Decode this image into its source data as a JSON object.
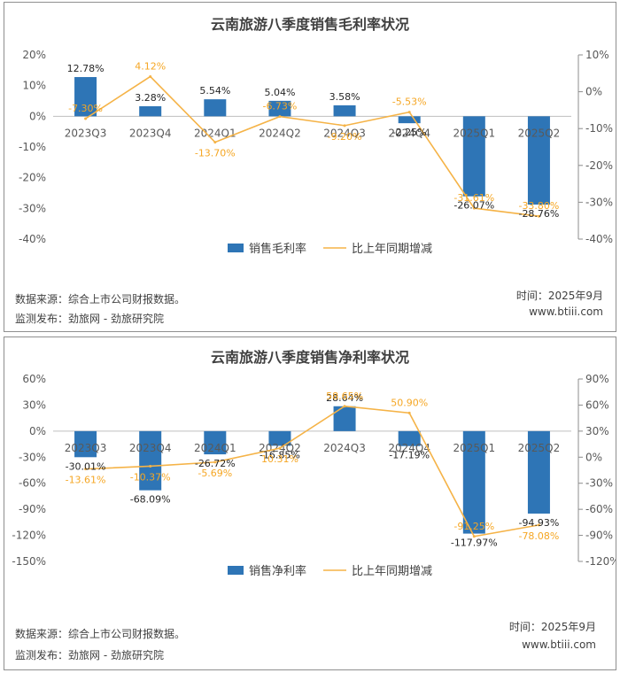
{
  "bar_color": "#2e75b6",
  "line_color": "#f5b347",
  "footer": {
    "source_label": "数据来源：",
    "source_text": "综合上市公司财报数据。",
    "publisher_label": "监测发布：",
    "publisher_text": "劲旅网 - 劲旅研究院",
    "time_text": "时间：2025年9月",
    "site_text": "www.btiii.com"
  },
  "chart_data": [
    {
      "type": "bar",
      "title": "云南旅游八季度销售毛利率状况",
      "categories": [
        "2023Q3",
        "2023Q4",
        "2024Q1",
        "2024Q2",
        "2024Q3",
        "2024Q4",
        "2025Q1",
        "2025Q2"
      ],
      "series": [
        {
          "name": "销售毛利率",
          "type": "bar",
          "axis": "left",
          "values": [
            12.78,
            3.28,
            5.54,
            5.04,
            3.58,
            -2.25,
            -26.07,
            -28.76
          ],
          "labels": [
            "12.78%",
            "3.28%",
            "5.54%",
            "5.04%",
            "3.58%",
            "-2.25%",
            "-26.07%",
            "-28.76%"
          ]
        },
        {
          "name": "比上年同期增减",
          "type": "line",
          "axis": "right",
          "values": [
            -7.3,
            4.12,
            -13.7,
            -6.73,
            -9.2,
            -5.53,
            -31.61,
            -33.8
          ],
          "labels": [
            "-7.30%",
            "4.12%",
            "-13.70%",
            "-6.73%",
            "-9.20%",
            "-5.53%",
            "-31.61%",
            "-33.80%"
          ]
        }
      ],
      "left_axis": {
        "min": -40,
        "max": 20,
        "step": 10,
        "ticks": [
          "20%",
          "10%",
          "0%",
          "-10%",
          "-20%",
          "-30%",
          "-40%"
        ]
      },
      "right_axis": {
        "min": -40,
        "max": 10,
        "step": 10,
        "ticks": [
          "10%",
          "0%",
          "-10%",
          "-20%",
          "-30%",
          "-40%"
        ]
      },
      "legend_position": "bottom"
    },
    {
      "type": "bar",
      "title": "云南旅游八季度销售净利率状况",
      "categories": [
        "2023Q3",
        "2023Q4",
        "2024Q1",
        "2024Q2",
        "2024Q3",
        "2024Q4",
        "2025Q1",
        "2025Q2"
      ],
      "series": [
        {
          "name": "销售净利率",
          "type": "bar",
          "axis": "left",
          "values": [
            -30.01,
            -68.09,
            -26.72,
            -16.85,
            28.64,
            -17.19,
            -117.97,
            -94.93
          ],
          "labels": [
            "-30.01%",
            "-68.09%",
            "-26.72%",
            "-16.85%",
            "28.64%",
            "-17.19%",
            "-117.97%",
            "-94.93%"
          ]
        },
        {
          "name": "比上年同期增减",
          "type": "line",
          "axis": "right",
          "values": [
            -13.61,
            -10.37,
            -5.69,
            10.31,
            58.65,
            50.9,
            -91.25,
            -78.08
          ],
          "labels": [
            "-13.61%",
            "-10.37%",
            "-5.69%",
            "10.31%",
            "58.65%",
            "50.90%",
            "-91.25%",
            "-78.08%"
          ]
        }
      ],
      "left_axis": {
        "min": -150,
        "max": 60,
        "step": 30,
        "ticks": [
          "60%",
          "30%",
          "0%",
          "-30%",
          "-60%",
          "-90%",
          "-120%",
          "-150%"
        ]
      },
      "right_axis": {
        "min": -120,
        "max": 90,
        "step": 30,
        "ticks": [
          "90%",
          "60%",
          "30%",
          "0%",
          "-30%",
          "-60%",
          "-90%",
          "-120%"
        ]
      },
      "legend_position": "bottom"
    }
  ]
}
